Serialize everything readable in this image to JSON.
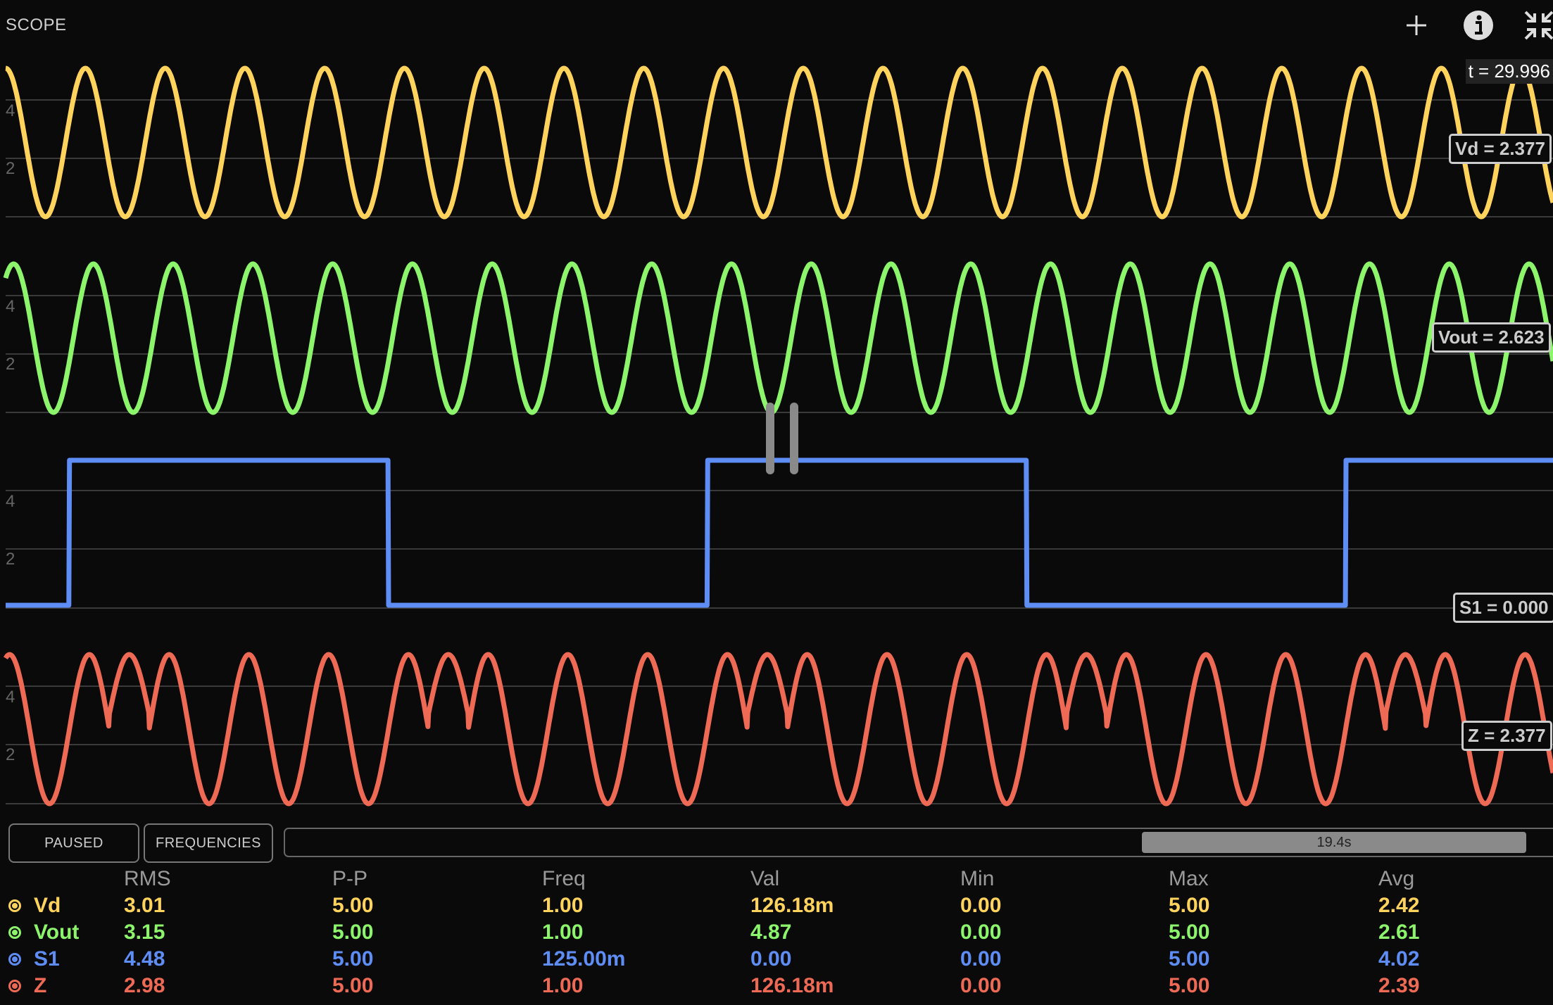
{
  "app": {
    "title": "SCOPE"
  },
  "colors": {
    "bg": "#0a0a0a",
    "grid": "#3a3a3a",
    "yellow": "#ffd35c",
    "green": "#8cf56b",
    "blue": "#5e8df5",
    "red": "#ee6a55"
  },
  "icons": {
    "add": "plus-icon",
    "info": "info-icon",
    "collapse": "collapse-icon"
  },
  "cursor": {
    "time_label": "t = 29.996"
  },
  "channels": [
    {
      "name": "Vd",
      "readout": "Vd = 2.377",
      "color": "#ffd35c",
      "grid_labels": [
        "4",
        "2"
      ],
      "signal": "sine",
      "freq_hz": 1.0
    },
    {
      "name": "Vout",
      "readout": "Vout = 2.623",
      "color": "#8cf56b",
      "grid_labels": [
        "4",
        "2"
      ],
      "signal": "sine",
      "freq_hz": 1.0
    },
    {
      "name": "S1",
      "readout": "S1 = 0.000",
      "color": "#5e8df5",
      "grid_labels": [
        "4",
        "2"
      ],
      "signal": "square",
      "freq_hz": 0.125
    },
    {
      "name": "Z",
      "readout": "Z = 2.377",
      "color": "#ee6a55",
      "grid_labels": [
        "4",
        "2"
      ],
      "signal": "mixed",
      "freq_hz": 1.0
    }
  ],
  "controls": {
    "paused_label": "PAUSED",
    "frequencies_label": "FREQUENCIES",
    "scroll_label": "19.4s"
  },
  "table": {
    "headers": [
      "RMS",
      "P-P",
      "Freq",
      "Val",
      "Min",
      "Max",
      "Avg"
    ],
    "rows": [
      {
        "name": "Vd",
        "color": "#ffd35c",
        "values": [
          "3.01",
          "5.00",
          "1.00",
          "126.18m",
          "0.00",
          "5.00",
          "2.42"
        ]
      },
      {
        "name": "Vout",
        "color": "#8cf56b",
        "values": [
          "3.15",
          "5.00",
          "1.00",
          "4.87",
          "0.00",
          "5.00",
          "2.61"
        ]
      },
      {
        "name": "S1",
        "color": "#5e8df5",
        "values": [
          "4.48",
          "5.00",
          "125.00m",
          "0.00",
          "0.00",
          "5.00",
          "4.02"
        ]
      },
      {
        "name": "Z",
        "color": "#ee6a55",
        "values": [
          "2.98",
          "5.00",
          "1.00",
          "126.18m",
          "0.00",
          "5.00",
          "2.39"
        ]
      }
    ]
  }
}
